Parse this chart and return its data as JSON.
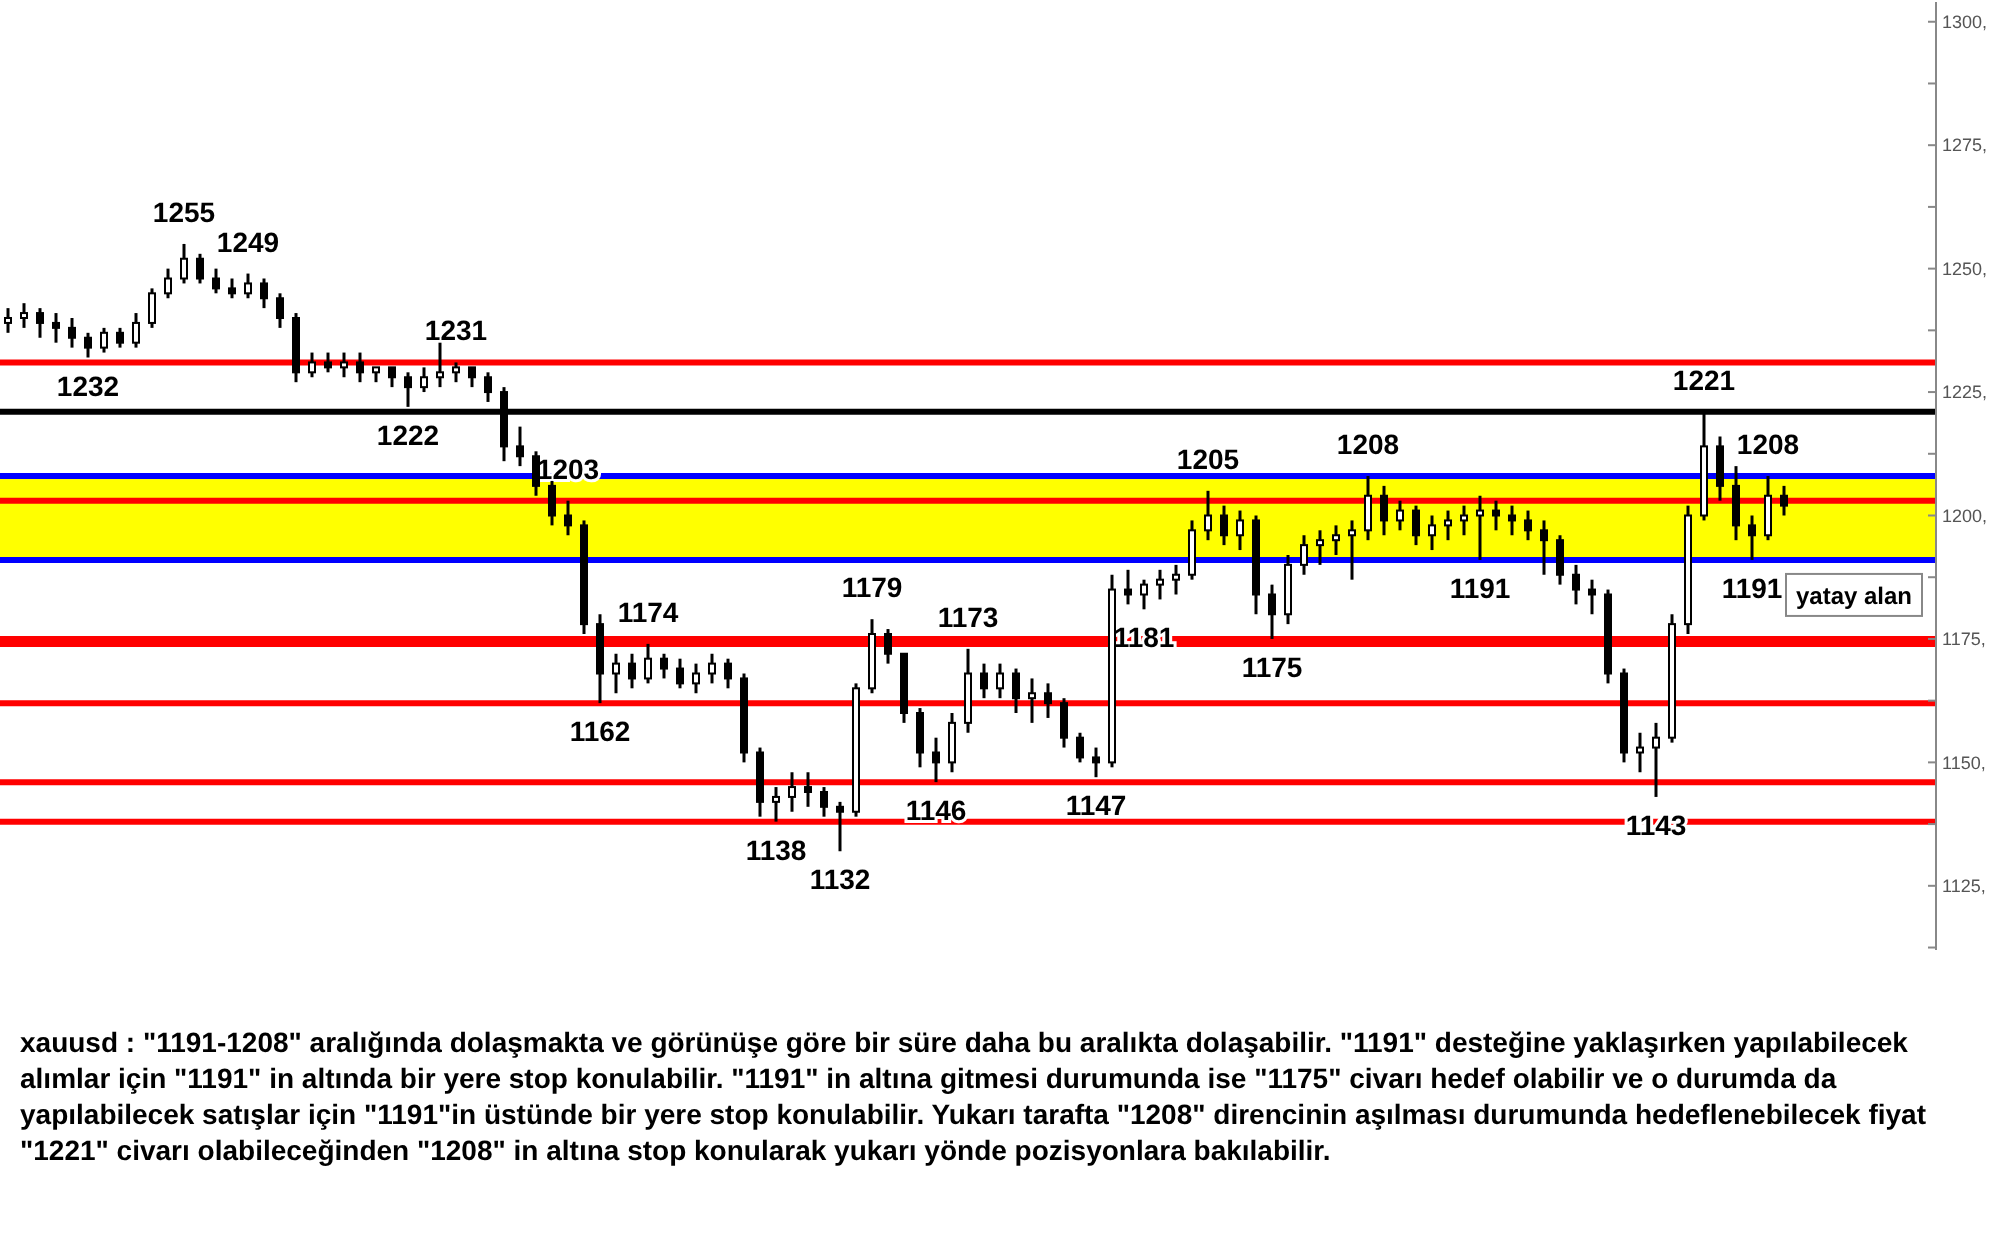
{
  "chart_data": {
    "type": "candlestick",
    "color": "#000000",
    "categories": [
      null,
      null,
      null,
      null,
      null,
      null,
      null,
      null,
      null,
      null,
      null,
      null,
      null,
      null,
      null,
      null,
      null,
      null,
      null,
      null,
      null,
      null,
      null,
      null,
      null,
      null,
      null,
      null,
      null,
      null,
      null,
      null,
      null,
      null,
      null,
      null,
      null,
      null,
      null,
      null,
      null,
      null,
      null,
      null,
      null,
      null,
      null,
      null,
      null,
      null,
      null,
      null,
      null,
      null,
      null,
      null,
      null,
      null,
      null,
      null,
      null,
      null,
      null,
      null,
      null,
      null,
      null,
      null,
      null,
      null,
      null,
      null,
      null,
      null,
      null,
      null,
      null,
      null,
      null,
      null,
      null,
      null,
      null,
      null,
      null,
      null,
      null,
      null,
      null,
      null,
      null,
      null,
      null,
      null,
      null,
      null,
      null,
      null,
      null,
      null,
      null,
      null,
      null,
      null,
      null,
      null,
      null,
      null,
      null,
      null,
      null,
      null,
      null,
      null,
      null,
      null,
      null,
      null,
      null,
      null,
      null
    ],
    "ohlc": [
      [
        1239,
        1242,
        1237,
        1240
      ],
      [
        1240,
        1243,
        1238,
        1241
      ],
      [
        1241,
        1242,
        1236,
        1239
      ],
      [
        1239,
        1241,
        1235,
        1238
      ],
      [
        1238,
        1240,
        1234,
        1236
      ],
      [
        1236,
        1237,
        1232,
        1234
      ],
      [
        1234,
        1238,
        1233,
        1237
      ],
      [
        1237,
        1238,
        1234,
        1235
      ],
      [
        1235,
        1241,
        1234,
        1239
      ],
      [
        1239,
        1246,
        1238,
        1245
      ],
      [
        1245,
        1250,
        1244,
        1248
      ],
      [
        1248,
        1255,
        1247,
        1252
      ],
      [
        1252,
        1253,
        1247,
        1248
      ],
      [
        1248,
        1250,
        1245,
        1246
      ],
      [
        1246,
        1248,
        1244,
        1245
      ],
      [
        1245,
        1249,
        1244,
        1247
      ],
      [
        1247,
        1248,
        1242,
        1244
      ],
      [
        1244,
        1245,
        1238,
        1240
      ],
      [
        1240,
        1241,
        1227,
        1229
      ],
      [
        1229,
        1233,
        1228,
        1231
      ],
      [
        1231,
        1233,
        1229,
        1230
      ],
      [
        1230,
        1233,
        1228,
        1231
      ],
      [
        1231,
        1233,
        1227,
        1229
      ],
      [
        1229,
        1230,
        1227,
        1230
      ],
      [
        1230,
        1230,
        1226,
        1228
      ],
      [
        1228,
        1229,
        1222,
        1226
      ],
      [
        1226,
        1230,
        1225,
        1228
      ],
      [
        1228,
        1235,
        1226,
        1229
      ],
      [
        1229,
        1231,
        1227,
        1230
      ],
      [
        1230,
        1230,
        1226,
        1228
      ],
      [
        1228,
        1229,
        1223,
        1225
      ],
      [
        1225,
        1226,
        1211,
        1214
      ],
      [
        1214,
        1218,
        1210,
        1212
      ],
      [
        1212,
        1213,
        1204,
        1206
      ],
      [
        1206,
        1207,
        1198,
        1200
      ],
      [
        1200,
        1203,
        1196,
        1198
      ],
      [
        1198,
        1199,
        1176,
        1178
      ],
      [
        1178,
        1180,
        1162,
        1168
      ],
      [
        1168,
        1172,
        1164,
        1170
      ],
      [
        1170,
        1172,
        1165,
        1167
      ],
      [
        1167,
        1174,
        1166,
        1171
      ],
      [
        1171,
        1172,
        1167,
        1169
      ],
      [
        1169,
        1171,
        1165,
        1166
      ],
      [
        1166,
        1170,
        1164,
        1168
      ],
      [
        1168,
        1172,
        1166,
        1170
      ],
      [
        1170,
        1171,
        1165,
        1167
      ],
      [
        1167,
        1168,
        1150,
        1152
      ],
      [
        1152,
        1153,
        1139,
        1142
      ],
      [
        1142,
        1145,
        1138,
        1143
      ],
      [
        1143,
        1148,
        1140,
        1145
      ],
      [
        1145,
        1148,
        1141,
        1144
      ],
      [
        1144,
        1145,
        1139,
        1141
      ],
      [
        1141,
        1142,
        1132,
        1140
      ],
      [
        1140,
        1166,
        1139,
        1165
      ],
      [
        1165,
        1179,
        1164,
        1176
      ],
      [
        1176,
        1177,
        1170,
        1172
      ],
      [
        1172,
        1172,
        1158,
        1160
      ],
      [
        1160,
        1161,
        1149,
        1152
      ],
      [
        1152,
        1155,
        1146,
        1150
      ],
      [
        1150,
        1160,
        1148,
        1158
      ],
      [
        1158,
        1173,
        1156,
        1168
      ],
      [
        1168,
        1170,
        1163,
        1165
      ],
      [
        1165,
        1170,
        1163,
        1168
      ],
      [
        1168,
        1169,
        1160,
        1163
      ],
      [
        1163,
        1167,
        1158,
        1164
      ],
      [
        1164,
        1166,
        1159,
        1162
      ],
      [
        1162,
        1163,
        1153,
        1155
      ],
      [
        1155,
        1156,
        1150,
        1151
      ],
      [
        1151,
        1153,
        1147,
        1150
      ],
      [
        1150,
        1188,
        1149,
        1185
      ],
      [
        1185,
        1189,
        1182,
        1184
      ],
      [
        1184,
        1187,
        1181,
        1186
      ],
      [
        1186,
        1189,
        1183,
        1187
      ],
      [
        1187,
        1190,
        1184,
        1188
      ],
      [
        1188,
        1199,
        1187,
        1197
      ],
      [
        1197,
        1205,
        1195,
        1200
      ],
      [
        1200,
        1202,
        1194,
        1196
      ],
      [
        1196,
        1201,
        1193,
        1199
      ],
      [
        1199,
        1200,
        1180,
        1184
      ],
      [
        1184,
        1186,
        1175,
        1180
      ],
      [
        1180,
        1192,
        1178,
        1190
      ],
      [
        1190,
        1196,
        1188,
        1194
      ],
      [
        1194,
        1197,
        1190,
        1195
      ],
      [
        1195,
        1198,
        1192,
        1196
      ],
      [
        1196,
        1199,
        1187,
        1197
      ],
      [
        1197,
        1208,
        1195,
        1204
      ],
      [
        1204,
        1206,
        1196,
        1199
      ],
      [
        1199,
        1203,
        1197,
        1201
      ],
      [
        1201,
        1202,
        1194,
        1196
      ],
      [
        1196,
        1200,
        1193,
        1198
      ],
      [
        1198,
        1201,
        1195,
        1199
      ],
      [
        1199,
        1202,
        1196,
        1200
      ],
      [
        1200,
        1204,
        1191,
        1201
      ],
      [
        1201,
        1203,
        1197,
        1200
      ],
      [
        1200,
        1202,
        1196,
        1199
      ],
      [
        1199,
        1201,
        1195,
        1197
      ],
      [
        1197,
        1199,
        1188,
        1195
      ],
      [
        1195,
        1196,
        1186,
        1188
      ],
      [
        1188,
        1190,
        1182,
        1185
      ],
      [
        1185,
        1187,
        1180,
        1184
      ],
      [
        1184,
        1185,
        1166,
        1168
      ],
      [
        1168,
        1169,
        1150,
        1152
      ],
      [
        1152,
        1156,
        1148,
        1153
      ],
      [
        1153,
        1158,
        1143,
        1155
      ],
      [
        1155,
        1180,
        1154,
        1178
      ],
      [
        1178,
        1202,
        1176,
        1200
      ],
      [
        1200,
        1221,
        1199,
        1214
      ],
      [
        1214,
        1216,
        1203,
        1206
      ],
      [
        1206,
        1210,
        1195,
        1198
      ],
      [
        1198,
        1200,
        1191,
        1196
      ],
      [
        1196,
        1208,
        1195,
        1204
      ],
      [
        1204,
        1206,
        1200,
        1202
      ],
      null,
      null,
      null,
      null,
      null,
      null,
      null,
      null,
      null
    ],
    "ylim": [
      1112,
      1304
    ],
    "yticks": [
      {
        "value": 1112.5,
        "label": null
      },
      {
        "value": 1125,
        "label": "1125,"
      },
      {
        "value": 1137.5,
        "label": null
      },
      {
        "value": 1150,
        "label": "1150,"
      },
      {
        "value": 1162.5,
        "label": null
      },
      {
        "value": 1175,
        "label": "1175,"
      },
      {
        "value": 1187.5,
        "label": null
      },
      {
        "value": 1200,
        "label": "1200,"
      },
      {
        "value": 1212.5,
        "label": null
      },
      {
        "value": 1225,
        "label": "1225,"
      },
      {
        "value": 1237.5,
        "label": null
      },
      {
        "value": 1250,
        "label": "1250,"
      },
      {
        "value": 1262.5,
        "label": null
      },
      {
        "value": 1275,
        "label": "1275,"
      },
      {
        "value": 1287.5,
        "label": null
      },
      {
        "value": 1300,
        "label": "1300,"
      }
    ],
    "bands": [
      {
        "axis": "y",
        "from": 1191,
        "to": 1208,
        "label": "yatay alan",
        "color": "#ffff00"
      }
    ],
    "ref_lines": [
      {
        "axis": "y",
        "value": 1231,
        "color": "#ff0000"
      },
      {
        "axis": "y",
        "value": 1203,
        "color": "#ff0000"
      },
      {
        "axis": "y",
        "value": 1174,
        "color": "#ff0000"
      },
      {
        "axis": "y",
        "value": 1162,
        "color": "#ff0000"
      },
      {
        "axis": "y",
        "value": 1138,
        "color": "#ff0000"
      },
      {
        "axis": "y",
        "value": 1146,
        "color": "#ff0000"
      },
      {
        "axis": "y",
        "value": 1175,
        "color": "#ff0000"
      },
      {
        "axis": "y",
        "value": 1208,
        "color": "#0000ff"
      },
      {
        "axis": "y",
        "value": 1191,
        "color": "#0000ff"
      },
      {
        "axis": "y",
        "value": 1221,
        "color": "#000000"
      }
    ],
    "annotations": [
      {
        "text": "1232",
        "y": 1232
      },
      {
        "text": "1255",
        "y": 1255
      },
      {
        "text": "1249",
        "y": 1249
      },
      {
        "text": "1222",
        "y": 1222
      },
      {
        "text": "1231",
        "y": 1231
      },
      {
        "text": "1203",
        "y": 1203
      },
      {
        "text": "1174",
        "y": 1174
      },
      {
        "text": "1162",
        "y": 1162
      },
      {
        "text": "1138",
        "y": 1138
      },
      {
        "text": "1132",
        "y": 1132
      },
      {
        "text": "1179",
        "y": 1179
      },
      {
        "text": "1146",
        "y": 1146
      },
      {
        "text": "1173",
        "y": 1173
      },
      {
        "text": "1147",
        "y": 1147
      },
      {
        "text": "1181",
        "y": 1181
      },
      {
        "text": "1205",
        "y": 1205
      },
      {
        "text": "1175",
        "y": 1175
      },
      {
        "text": "1208",
        "y": 1208
      },
      {
        "text": "1191",
        "y": 1191
      },
      {
        "text": "1143",
        "y": 1143
      },
      {
        "text": "1221",
        "y": 1221
      },
      {
        "text": "1208",
        "y": 1208
      },
      {
        "text": "1191",
        "y": 1191
      },
      "xauusd : \"1191-1208\" aralığında dolaşmakta ve görünüşe göre bir süre daha bu aralıkta dolaşabilir. \"1191\" desteğine yaklaşırken yapılabilecek alımlar için \"1191\" in altında bir yere stop konulabilir. \"1191\" in altına gitmesi durumunda ise \"1175\" civarı hedef olabilir ve o durumda da yapılabilecek satışlar için \"1191\"in üstünde bir yere stop konulabilir. Yukarı tarafta \"1208\" direncinin aşılması durumunda hedeflenebilecek fiyat \"1221\" civarı olabileceğinden \"1208\" in altına stop konularak yukarı yönde pozisyonlara bakılabilir."
    ]
  }
}
